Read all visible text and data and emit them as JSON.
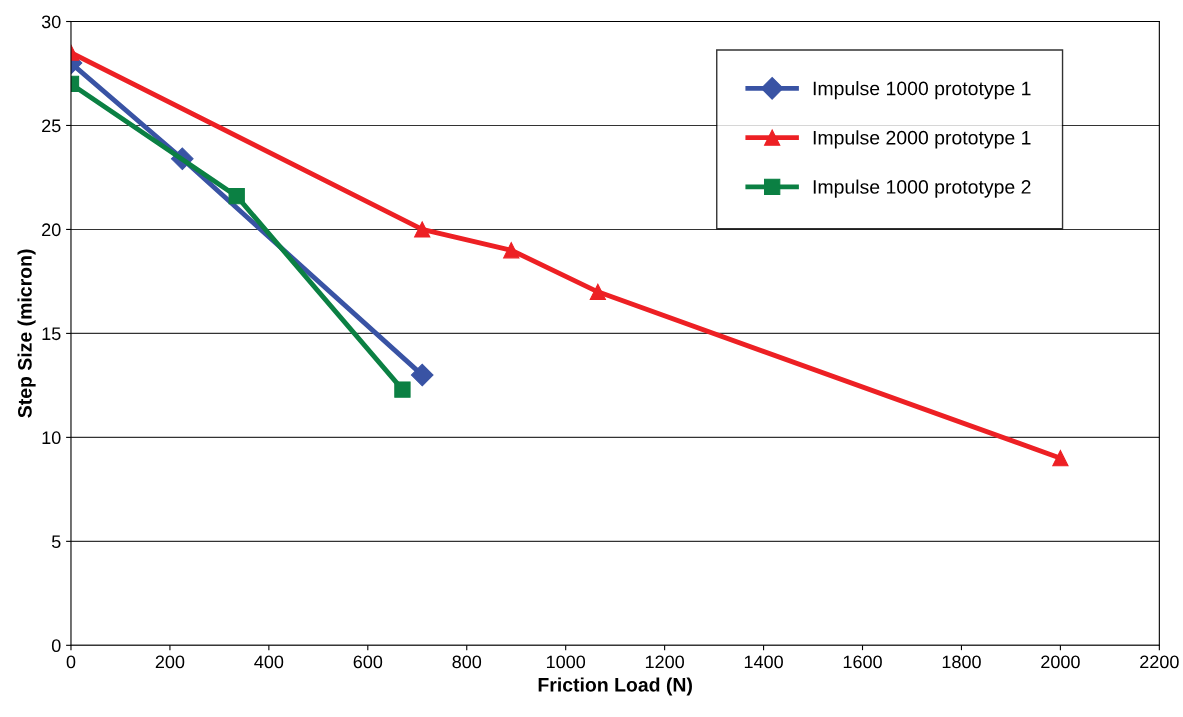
{
  "chart_data": {
    "type": "line",
    "xlabel": "Friction Load (N)",
    "ylabel": "Step Size (micron)",
    "xlim": [
      0,
      2200
    ],
    "xticks": [
      0,
      200,
      400,
      600,
      800,
      1000,
      1200,
      1400,
      1600,
      1800,
      2000,
      2200
    ],
    "ylim": [
      0,
      30
    ],
    "yticks": [
      0,
      5,
      10,
      15,
      20,
      25,
      30
    ],
    "grid": "y",
    "legend": "top right",
    "line_style": "solid",
    "series": [
      {
        "name": "Impulse 1000 prototype 1",
        "color": "#3953a4",
        "marker": "diamond",
        "x": [
          0,
          225,
          710
        ],
        "values": [
          28,
          23.4,
          13
        ]
      },
      {
        "name": "Impulse 2000 prototype 1",
        "color": "#ed2024",
        "marker": "triangle",
        "x": [
          0,
          710,
          890,
          1065,
          2000
        ],
        "values": [
          28.5,
          20,
          19,
          17,
          9
        ]
      },
      {
        "name": "Impulse 1000 prototype 2",
        "color": "#0b8043",
        "marker": "square",
        "x": [
          0,
          335,
          670
        ],
        "values": [
          27,
          21.6,
          12.3
        ]
      }
    ]
  }
}
